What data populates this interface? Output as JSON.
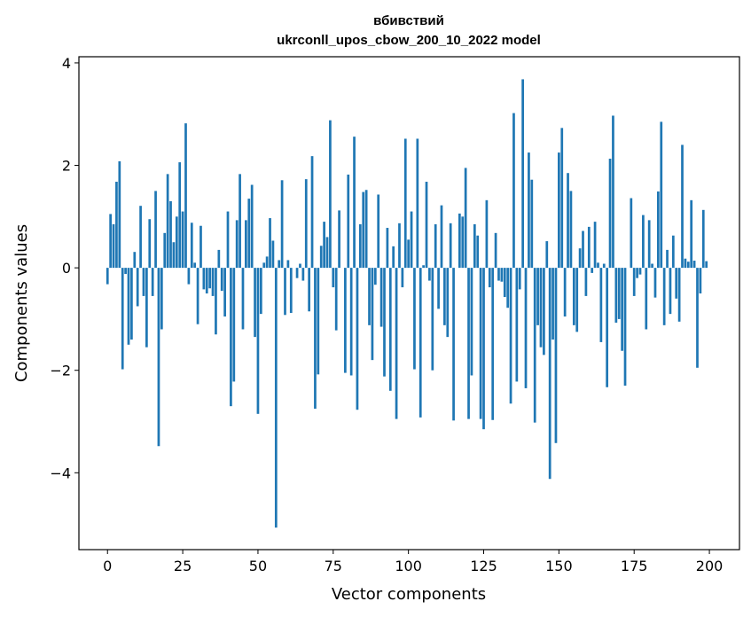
{
  "chart_data": {
    "type": "bar",
    "title": "вбивствий",
    "subtitle": "ukrconll_upos_cbow_200_10_2022 model",
    "xlabel": "Vector components",
    "ylabel": "Components values",
    "xlim": [
      -9.5,
      210
    ],
    "ylim": [
      -5.5,
      4.12
    ],
    "x_ticks": [
      0,
      25,
      50,
      75,
      100,
      125,
      150,
      175,
      200
    ],
    "y_ticks": [
      -4,
      -2,
      0,
      2,
      4
    ],
    "y_tick_labels": [
      "−4",
      "−2",
      "0",
      "2",
      "4"
    ],
    "grid": false,
    "bar_color": "#1f77b4",
    "x": "indices 0..199",
    "values": [
      -0.32,
      1.05,
      0.85,
      1.68,
      2.08,
      -1.98,
      -0.12,
      -1.5,
      -1.4,
      0.31,
      -0.75,
      1.21,
      -0.55,
      -1.55,
      0.95,
      -0.55,
      1.5,
      -3.48,
      -1.2,
      0.68,
      1.83,
      1.3,
      0.5,
      1.0,
      2.06,
      1.1,
      2.82,
      -0.32,
      0.88,
      0.1,
      -1.1,
      0.82,
      -0.42,
      -0.5,
      -0.4,
      -0.55,
      -1.3,
      0.35,
      -0.45,
      -0.95,
      1.1,
      -2.7,
      -2.22,
      0.93,
      1.83,
      -1.2,
      0.93,
      1.35,
      1.62,
      -1.35,
      -2.85,
      -0.9,
      0.1,
      0.22,
      0.97,
      0.53,
      -5.07,
      0.15,
      1.71,
      -0.92,
      0.15,
      -0.88,
      0.0,
      -0.2,
      0.08,
      -0.25,
      1.73,
      -0.85,
      2.18,
      -2.75,
      -2.08,
      0.43,
      0.9,
      0.6,
      2.88,
      -0.38,
      -1.22,
      1.12,
      0.0,
      -2.05,
      1.82,
      -2.1,
      2.56,
      -2.77,
      0.85,
      1.48,
      1.52,
      -1.12,
      -1.8,
      -0.33,
      1.43,
      -1.15,
      -2.12,
      0.78,
      -2.4,
      0.42,
      -2.95,
      0.87,
      -0.38,
      2.52,
      0.55,
      1.1,
      -1.98,
      2.52,
      -2.92,
      0.05,
      1.68,
      -0.25,
      -2.0,
      0.85,
      -0.8,
      1.22,
      -1.12,
      -1.35,
      0.87,
      -2.98,
      0.0,
      1.06,
      1.0,
      1.95,
      -2.95,
      -2.1,
      0.85,
      0.63,
      -2.95,
      -3.15,
      1.32,
      -0.38,
      -2.97,
      0.68,
      -0.25,
      -0.27,
      -0.57,
      -0.78,
      -2.65,
      3.02,
      -2.22,
      -0.42,
      3.68,
      -2.35,
      2.25,
      1.72,
      -3.02,
      -1.12,
      -1.55,
      -1.7,
      0.52,
      -4.12,
      -1.4,
      -3.42,
      2.25,
      2.73,
      -0.95,
      1.85,
      1.5,
      -1.12,
      -1.25,
      0.38,
      0.72,
      -0.55,
      0.8,
      -0.1,
      0.9,
      0.1,
      -1.45,
      0.08,
      -2.33,
      2.13,
      2.97,
      -1.07,
      -1.0,
      -1.62,
      -2.3,
      0.0,
      1.36,
      -0.55,
      -0.2,
      -0.13,
      1.03,
      -1.2,
      0.93,
      0.08,
      -0.58,
      1.49,
      2.85,
      -1.12,
      0.35,
      -0.9,
      0.63,
      -0.6,
      -1.05,
      2.4,
      0.18,
      0.12,
      1.32,
      0.14,
      -1.95,
      -0.5,
      1.13,
      0.13
    ]
  }
}
